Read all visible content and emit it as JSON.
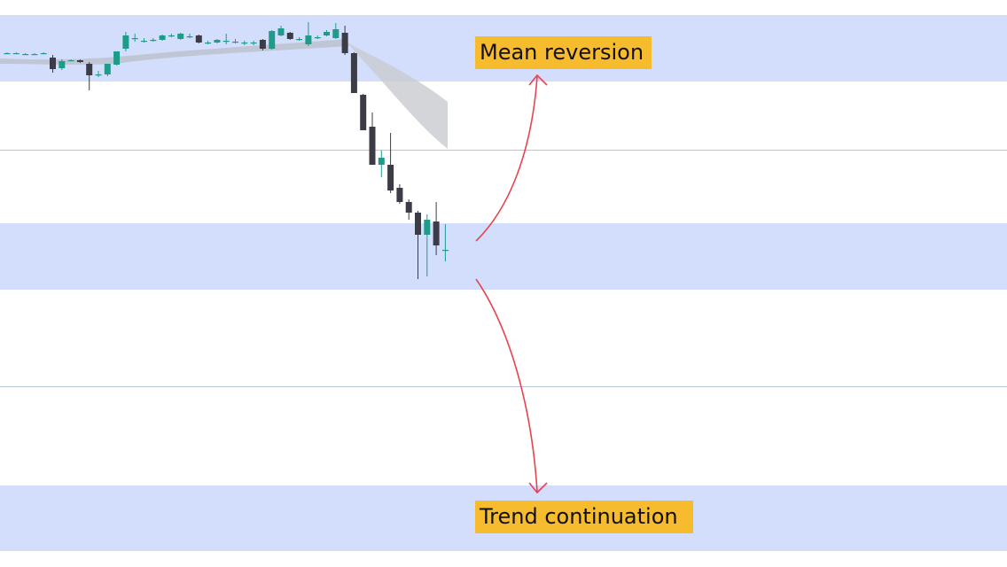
{
  "chart_data": {
    "type": "candlestick",
    "annotations": [
      "Mean reversion",
      "Trend continuation"
    ],
    "ylim": [
      0,
      640
    ],
    "up_color": "#1f9b89",
    "down_color": "#3c3c46",
    "open": [
      580,
      580,
      579,
      579,
      580,
      575,
      563,
      572,
      572,
      568,
      556,
      556,
      567,
      585,
      597,
      594,
      595,
      595,
      600,
      596,
      599,
      600,
      592,
      592,
      594,
      593,
      592,
      592,
      595,
      585,
      600,
      603,
      596,
      590,
      598,
      600,
      597,
      603,
      580,
      533,
      497,
      454,
      454,
      428,
      412,
      400,
      375,
      390,
      358
    ],
    "high": [
      581,
      581,
      580,
      580,
      581,
      578,
      573,
      573,
      573,
      570,
      560,
      568,
      582,
      604,
      602,
      597,
      597,
      601,
      602,
      603,
      602,
      601,
      594,
      596,
      602,
      596,
      594,
      594,
      596,
      606,
      611,
      604,
      598,
      615,
      600,
      606,
      614,
      611,
      581,
      534,
      513,
      470,
      490,
      432,
      415,
      402,
      398,
      412,
      387
    ],
    "low": [
      579,
      579,
      578,
      578,
      579,
      558,
      561,
      571,
      569,
      538,
      553,
      554,
      566,
      582,
      593,
      592,
      593,
      594,
      598,
      595,
      597,
      591,
      590,
      591,
      590,
      591,
      589,
      589,
      583,
      584,
      599,
      595,
      594,
      588,
      596,
      599,
      596,
      578,
      535,
      493,
      454,
      440,
      422,
      410,
      392,
      325,
      328,
      352,
      345
    ],
    "close": [
      580,
      580,
      579,
      579,
      580,
      562,
      571,
      572,
      570,
      555,
      556,
      568,
      582,
      600,
      597,
      594,
      595,
      600,
      600,
      602,
      599,
      592,
      592,
      595,
      594,
      593,
      592,
      592,
      585,
      605,
      608,
      596,
      596,
      600,
      598,
      604,
      607,
      580,
      535,
      493,
      454,
      462,
      425,
      412,
      400,
      375,
      392,
      363,
      358
    ]
  }
}
